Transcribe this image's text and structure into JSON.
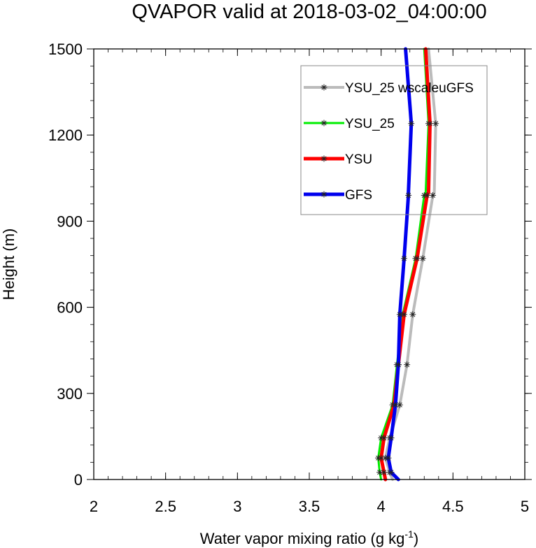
{
  "chart_data": {
    "type": "line",
    "title": "QVAPOR valid at 2018-03-02_04:00:00",
    "xlabel_main": "Water vapor mixing ratio (g kg",
    "xlabel_sup": "-1",
    "xlabel_close": ")",
    "ylabel": "Height (m)",
    "xlim": [
      2,
      5
    ],
    "ylim": [
      0,
      1500
    ],
    "x_ticks": [
      2,
      2.5,
      3,
      3.5,
      4,
      4.5,
      5
    ],
    "x_tick_labels": [
      "2",
      "2.5",
      "3",
      "3.5",
      "4",
      "4.5",
      "5"
    ],
    "y_ticks": [
      0,
      300,
      600,
      900,
      1200,
      1500
    ],
    "y_tick_labels": [
      "0",
      "300",
      "600",
      "900",
      "1200",
      "1500"
    ],
    "legend_position": "top-right",
    "series": [
      {
        "name": "YSU_25 wscaleuGFS",
        "color": "#bbbbbb",
        "x": [
          4.08,
          4.06,
          4.03,
          4.06,
          4.13,
          4.18,
          4.22,
          4.29,
          4.36,
          4.37,
          4.38,
          4.33
        ],
        "y": [
          0,
          25,
          75,
          145,
          260,
          400,
          575,
          770,
          990,
          1000,
          1240,
          1500
        ],
        "markers_y": [
          25,
          75,
          145,
          260,
          400,
          575,
          770,
          990,
          1240
        ]
      },
      {
        "name": "YSU_25",
        "color": "#00ee00",
        "x": [
          4.0,
          3.99,
          3.98,
          4.0,
          4.08,
          4.11,
          4.15,
          4.24,
          4.3,
          4.31,
          4.33,
          4.3
        ],
        "y": [
          0,
          25,
          75,
          145,
          260,
          400,
          575,
          770,
          990,
          1000,
          1240,
          1500
        ],
        "markers_y": [
          25,
          75,
          145,
          260,
          400,
          575,
          770,
          990,
          1240
        ]
      },
      {
        "name": "YSU",
        "color": "#ff0000",
        "x": [
          4.03,
          4.02,
          4.0,
          4.02,
          4.09,
          4.12,
          4.16,
          4.25,
          4.32,
          4.33,
          4.34,
          4.31
        ],
        "y": [
          0,
          25,
          75,
          145,
          260,
          400,
          575,
          770,
          990,
          1000,
          1240,
          1500
        ],
        "markers_y": [
          25,
          75,
          145,
          260,
          400,
          575,
          770,
          990,
          1240
        ]
      },
      {
        "name": "GFS",
        "color": "#0000ee",
        "x": [
          4.12,
          4.07,
          4.05,
          4.07,
          4.1,
          4.12,
          4.13,
          4.16,
          4.19,
          4.19,
          4.21,
          4.17
        ],
        "y": [
          0,
          25,
          75,
          145,
          260,
          400,
          575,
          770,
          990,
          1000,
          1240,
          1500
        ],
        "markers_y": [
          25,
          75,
          145,
          260,
          400,
          575,
          770,
          990,
          1240
        ]
      }
    ]
  }
}
